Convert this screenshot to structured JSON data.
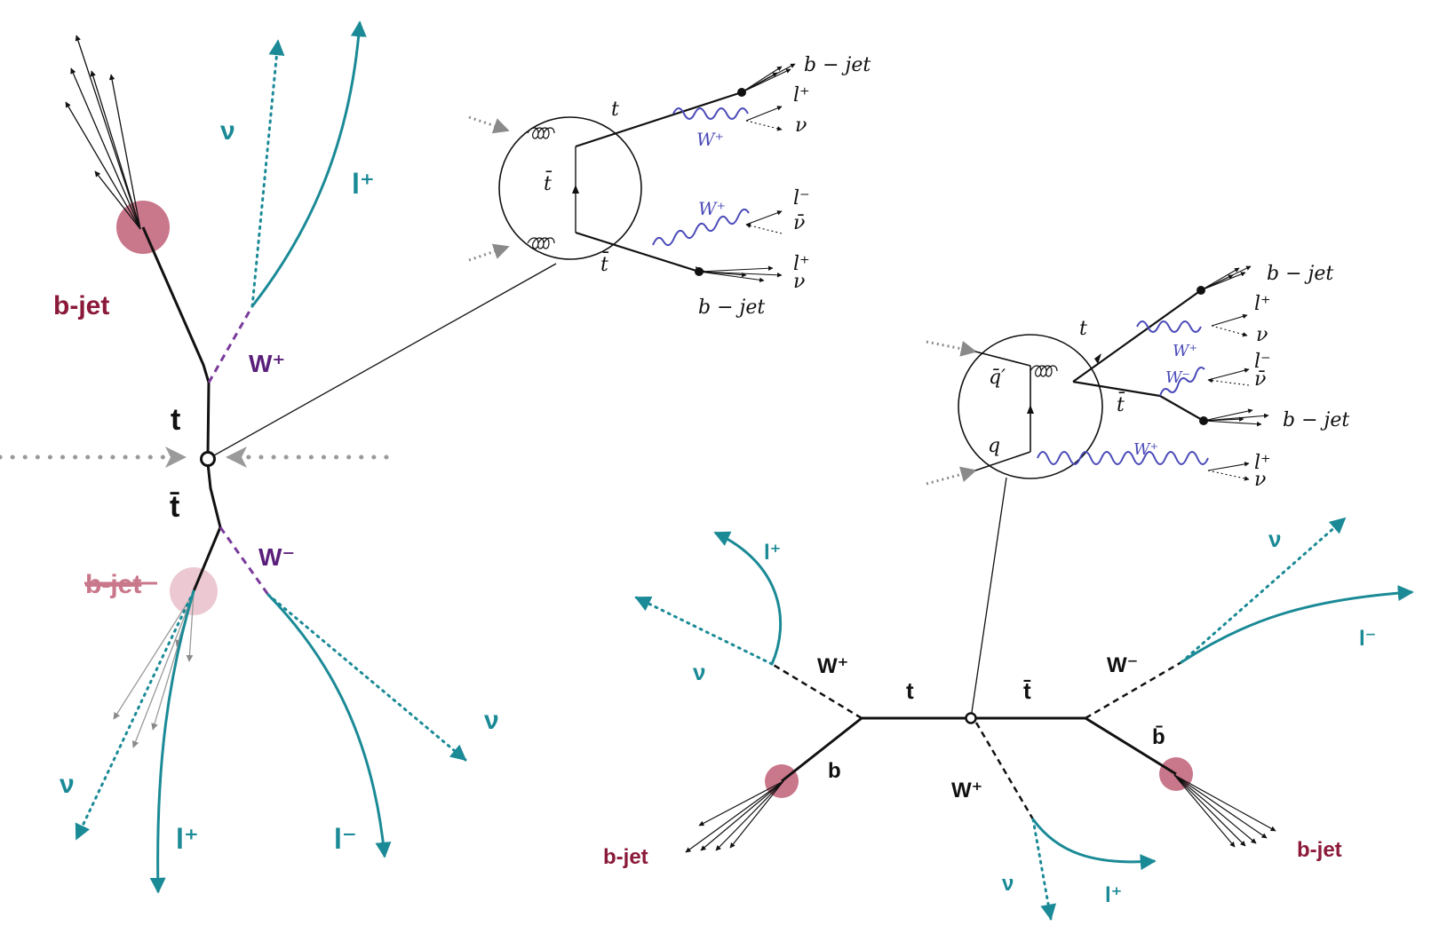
{
  "colors": {
    "black": "#111111",
    "teal": "#1a8a96",
    "purple": "#5a1f7a",
    "maroon": "#8b1a3a",
    "blob": "#c9778a",
    "blob_light": "#ecc9d2",
    "gray": "#9a9a9a",
    "wave_blue": "#4a4ab8"
  },
  "left_diagram": {
    "top_label": "t",
    "antitop_label": "t̄",
    "bjet_top": "b-jet",
    "bjet_bottom": "b-jet",
    "w_plus": "W⁺",
    "w_minus": "W⁻",
    "nu_top": "ν",
    "lplus_top": "l⁺",
    "nu_right": "ν",
    "nu_bottom": "ν",
    "lplus_bottom": "l⁺",
    "lminus_bottom": "l⁻"
  },
  "inset_top": {
    "t": "t",
    "tbar_prop": "t̄",
    "tbar_out": "t̄",
    "w1": "W⁺",
    "w2": "W⁺",
    "bjet1": "b − jet",
    "bjet2": "b − jet",
    "lplus1": "l⁺",
    "nu1": "ν",
    "lminus": "l⁻",
    "nubar": "ν̄",
    "lplus2": "l⁺",
    "nu2": "ν"
  },
  "inset_bottom": {
    "qbar": "q̄′",
    "q": "q",
    "t": "t",
    "tbar": "t̄",
    "w1": "W⁺",
    "w2": "W⁻",
    "w3": "W⁺",
    "bjet1": "b − jet",
    "bjet2": "b − jet",
    "lplus1": "l⁺",
    "nu1": "ν",
    "lminus": "l⁻",
    "nubar": "ν̄",
    "lplus2": "l⁺",
    "nu2": "ν"
  },
  "right_diagram": {
    "t": "t",
    "tbar": "t̄",
    "b": "b",
    "bbar": "b̄",
    "w_plus_left": "W⁺",
    "w_minus_right": "W⁻",
    "w_plus_bottom": "W⁺",
    "lplus_left": "l⁺",
    "nu_left": "ν",
    "bjet_left": "b-jet",
    "nu_right": "ν",
    "lminus_right": "l⁻",
    "bjet_right": "b-jet",
    "nu_bottom": "ν",
    "lplus_bottom": "l⁺"
  }
}
